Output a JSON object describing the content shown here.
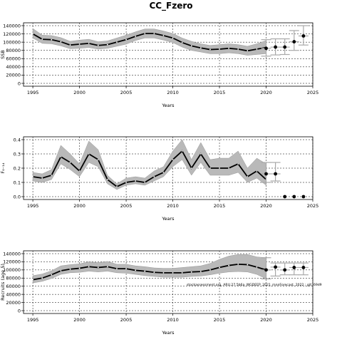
{
  "title": "CC_Fzero",
  "source_note": "stockassessment.org, ARU.27.5b6a_WGDEEP_2021_mnnForecast, 2022 ; git: 69d9",
  "chart_data": [
    {
      "type": "line",
      "ylabel": "SSB",
      "xlabel": "Years",
      "xlim": [
        1994,
        2025
      ],
      "ylim": [
        0,
        140000
      ],
      "xticks": [
        1995,
        2000,
        2005,
        2010,
        2015,
        2020,
        2025
      ],
      "yticks": [
        0,
        20000,
        40000,
        60000,
        80000,
        100000,
        120000,
        140000
      ],
      "grid": true,
      "series": [
        {
          "x": [
            1995,
            1996,
            1997,
            1998,
            1999,
            2000,
            2001,
            2002,
            2003,
            2004,
            2005,
            2006,
            2007,
            2008,
            2009,
            2010,
            2011,
            2012,
            2013,
            2014,
            2015,
            2016,
            2017,
            2018,
            2019,
            2020
          ],
          "values": [
            120000,
            107000,
            106000,
            101000,
            93000,
            95000,
            97000,
            92000,
            94000,
            100000,
            106000,
            114000,
            121000,
            121000,
            116000,
            110000,
            99000,
            91000,
            86000,
            82000,
            83000,
            85000,
            83000,
            79000,
            83000,
            87000
          ],
          "lower": [
            110000,
            97000,
            96000,
            91000,
            84000,
            85000,
            87000,
            83000,
            85000,
            90000,
            95000,
            104000,
            110000,
            110000,
            105000,
            99000,
            88000,
            80000,
            76000,
            72000,
            72000,
            74000,
            72000,
            68000,
            70000,
            72000
          ],
          "upper": [
            133000,
            117000,
            116000,
            111000,
            102000,
            105000,
            107000,
            101000,
            103000,
            110000,
            117000,
            125000,
            132000,
            132000,
            127000,
            121000,
            110000,
            102000,
            96000,
            92000,
            94000,
            96000,
            94000,
            90000,
            96000,
            104000
          ]
        }
      ],
      "forecast": [
        {
          "x": 2020,
          "value": 85000,
          "lower": 66000,
          "upper": 106000
        },
        {
          "x": 2021,
          "value": 88000,
          "lower": 69000,
          "upper": 108000
        },
        {
          "x": 2022,
          "value": 88000,
          "lower": 70000,
          "upper": 108000
        },
        {
          "x": 2023,
          "value": 101000,
          "lower": 80000,
          "upper": 128000
        },
        {
          "x": 2024,
          "value": 115000,
          "lower": 93000,
          "upper": 140000
        }
      ]
    },
    {
      "type": "line",
      "ylabel": "F₀₋₁₄",
      "xlabel": "Years",
      "xlim": [
        1994,
        2025
      ],
      "ylim": [
        0,
        0.4
      ],
      "xticks": [
        1995,
        2000,
        2005,
        2010,
        2015,
        2020,
        2025
      ],
      "yticks": [
        0.0,
        0.1,
        0.2,
        0.3,
        0.4
      ],
      "ytick_labels": [
        "0.0",
        "0.1",
        "0.2",
        "0.3",
        "0.4"
      ],
      "grid": true,
      "series": [
        {
          "x": [
            1995,
            1996,
            1997,
            1998,
            1999,
            2000,
            2001,
            2002,
            2003,
            2004,
            2005,
            2006,
            2007,
            2008,
            2009,
            2010,
            2011,
            2012,
            2013,
            2014,
            2015,
            2016,
            2017,
            2018,
            2019,
            2020
          ],
          "values": [
            0.14,
            0.13,
            0.15,
            0.28,
            0.24,
            0.18,
            0.3,
            0.26,
            0.12,
            0.07,
            0.1,
            0.11,
            0.1,
            0.14,
            0.17,
            0.26,
            0.32,
            0.2,
            0.3,
            0.2,
            0.2,
            0.2,
            0.23,
            0.14,
            0.18,
            0.12
          ],
          "lower": [
            0.11,
            0.1,
            0.12,
            0.23,
            0.19,
            0.14,
            0.24,
            0.21,
            0.09,
            0.05,
            0.08,
            0.09,
            0.08,
            0.11,
            0.14,
            0.21,
            0.26,
            0.15,
            0.24,
            0.15,
            0.15,
            0.15,
            0.17,
            0.1,
            0.13,
            0.08
          ],
          "upper": [
            0.17,
            0.16,
            0.19,
            0.36,
            0.3,
            0.23,
            0.39,
            0.33,
            0.15,
            0.09,
            0.13,
            0.14,
            0.13,
            0.18,
            0.21,
            0.32,
            0.4,
            0.26,
            0.38,
            0.26,
            0.27,
            0.27,
            0.32,
            0.2,
            0.27,
            0.23
          ]
        }
      ],
      "forecast": [
        {
          "x": 2020,
          "value": 0.16,
          "lower": 0.1,
          "upper": 0.24
        },
        {
          "x": 2021,
          "value": 0.16,
          "lower": 0.11,
          "upper": 0.24
        },
        {
          "x": 2022,
          "value": 0.0
        },
        {
          "x": 2023,
          "value": 0.0
        },
        {
          "x": 2024,
          "value": 0.0
        }
      ]
    },
    {
      "type": "line",
      "ylabel": "Recruits (age 5)",
      "xlabel": "Years",
      "xlim": [
        1994,
        2025
      ],
      "ylim": [
        0,
        140000
      ],
      "xticks": [
        1995,
        2000,
        2005,
        2010,
        2015,
        2020,
        2025
      ],
      "yticks": [
        0,
        20000,
        40000,
        60000,
        80000,
        100000,
        120000,
        140000
      ],
      "grid": true,
      "series": [
        {
          "x": [
            1995,
            1996,
            1997,
            1998,
            1999,
            2000,
            2001,
            2002,
            2003,
            2004,
            2005,
            2006,
            2007,
            2008,
            2009,
            2010,
            2011,
            2012,
            2013,
            2014,
            2015,
            2016,
            2017,
            2018,
            2019,
            2020
          ],
          "values": [
            76000,
            80000,
            88000,
            98000,
            102000,
            104000,
            108000,
            106000,
            108000,
            103000,
            103000,
            99000,
            97000,
            94000,
            93000,
            93000,
            93000,
            95000,
            96000,
            100000,
            106000,
            111000,
            114000,
            113000,
            107000,
            100000
          ],
          "lower": [
            68000,
            72000,
            79000,
            89000,
            93000,
            94000,
            97000,
            95000,
            97000,
            93000,
            92000,
            89000,
            86000,
            84000,
            82000,
            82000,
            82000,
            84000,
            85000,
            88000,
            92000,
            95000,
            96000,
            95000,
            89000,
            78000
          ],
          "upper": [
            86000,
            90000,
            98000,
            110000,
            113000,
            115000,
            120000,
            118000,
            121000,
            114000,
            114000,
            110000,
            108000,
            105000,
            104000,
            104000,
            106000,
            108000,
            110000,
            116000,
            126000,
            134000,
            138000,
            138000,
            132000,
            130000
          ]
        }
      ],
      "forecast": [
        {
          "x": 2020,
          "value": 100000,
          "lower": 78000,
          "upper": 130000
        },
        {
          "x": 2021,
          "value": 107000,
          "lower": 85000,
          "upper": 117000
        },
        {
          "x": 2022,
          "value": 100000,
          "lower": 88000,
          "upper": 117000
        },
        {
          "x": 2023,
          "value": 106000,
          "lower": 88000,
          "upper": 117000
        },
        {
          "x": 2024,
          "value": 106000,
          "lower": 88000,
          "upper": 117000
        }
      ]
    }
  ]
}
